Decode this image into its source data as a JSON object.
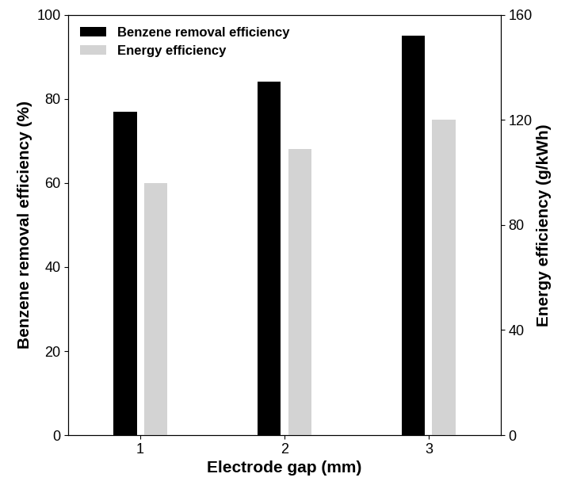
{
  "chart_data": {
    "type": "bar",
    "categories": [
      "1",
      "2",
      "3"
    ],
    "x_label": "Electrode gap (mm)",
    "y_label": "Benzene removal efficiency (%)",
    "y2_label": "Energy efficiency (g/kWh)",
    "series": [
      {
        "name": "Benzene removal efficiency",
        "color": "#000000",
        "values": [
          77,
          84,
          95
        ]
      },
      {
        "name": "Energy efficiency",
        "color": "#d3d3d3",
        "values": [
          96,
          109,
          120
        ],
        "axis": "y2"
      }
    ],
    "ylim": [
      0,
      100
    ],
    "yticks": [
      0,
      20,
      40,
      60,
      80,
      100
    ],
    "y2lim": [
      0,
      160
    ],
    "y2ticks": [
      0,
      40,
      80,
      120,
      160
    ],
    "legend": "upper left",
    "grid": false
  }
}
